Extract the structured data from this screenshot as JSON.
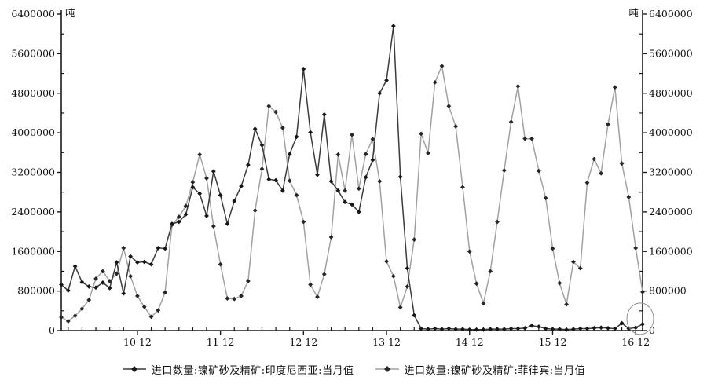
{
  "chart": {
    "unit_left": "吨",
    "unit_right": "吨",
    "background": "#ffffff",
    "axis_color": "#1a1a1a",
    "tick_label_color": "#111111",
    "tick_font_size": 12.5
  },
  "annotation": {
    "type": "ellipse",
    "description": "hand-drawn circle highlighting the final Indonesia data point near zero",
    "series_index": 0,
    "point_index": 84,
    "rx": 17,
    "ry": 20,
    "color": "#8f8f8f"
  },
  "chart_data": {
    "type": "line",
    "title": "",
    "xlabel": "",
    "ylabel": "吨",
    "grid": false,
    "legend_position": "bottom-center",
    "x_start": "2010-01",
    "x_end": "2017-01",
    "x_frequency": "monthly",
    "n_points": 85,
    "y_axis": {
      "min": 0,
      "max": 6400000,
      "major_step": 800000,
      "minor_step": 400000
    },
    "x_axis": {
      "minor_tick_every_months": 2,
      "ticks": [
        {
          "index": 11,
          "label": "10 12"
        },
        {
          "index": 23,
          "label": "11 12"
        },
        {
          "index": 35,
          "label": "12 12"
        },
        {
          "index": 47,
          "label": "13 12"
        },
        {
          "index": 59,
          "label": "14 12"
        },
        {
          "index": 71,
          "label": "15 12"
        },
        {
          "index": 83,
          "label": "16 12"
        }
      ]
    },
    "series": [
      {
        "name": "进口数量:镍矿砂及精矿:印度尼西亚:当月值",
        "line_color": "#3c3c3c",
        "marker_color": "#161616",
        "values": [
          930000,
          810000,
          1300000,
          980000,
          890000,
          870000,
          970000,
          860000,
          1380000,
          750000,
          1500000,
          1380000,
          1390000,
          1340000,
          1670000,
          1660000,
          2160000,
          2200000,
          2350000,
          2900000,
          2770000,
          2320000,
          3220000,
          2740000,
          2160000,
          2620000,
          2920000,
          3350000,
          4080000,
          3750000,
          3060000,
          3040000,
          2830000,
          3570000,
          3920000,
          5290000,
          4010000,
          3150000,
          4370000,
          3020000,
          2830000,
          2600000,
          2550000,
          2400000,
          3100000,
          3450000,
          4800000,
          5060000,
          6160000,
          3110000,
          1260000,
          310000,
          40000,
          30000,
          40000,
          30000,
          40000,
          30000,
          30000,
          20000,
          20000,
          20000,
          30000,
          30000,
          30000,
          40000,
          40000,
          50000,
          100000,
          80000,
          40000,
          30000,
          30000,
          20000,
          30000,
          40000,
          40000,
          50000,
          60000,
          50000,
          40000,
          150000,
          40000,
          60000,
          130000
        ]
      },
      {
        "name": "进口数量:镍矿砂及精矿:菲律宾:当月值",
        "line_color": "#a2a2a2",
        "marker_color": "#262626",
        "values": [
          270000,
          190000,
          300000,
          440000,
          620000,
          1050000,
          1200000,
          1000000,
          1150000,
          1670000,
          1100000,
          700000,
          480000,
          280000,
          410000,
          770000,
          2140000,
          2300000,
          2520000,
          3000000,
          3560000,
          3080000,
          2110000,
          1340000,
          650000,
          640000,
          700000,
          1000000,
          2430000,
          3270000,
          4540000,
          4420000,
          4100000,
          3030000,
          2740000,
          2200000,
          930000,
          680000,
          1140000,
          1890000,
          3560000,
          2830000,
          3960000,
          2870000,
          3570000,
          3870000,
          3020000,
          1400000,
          1100000,
          470000,
          890000,
          1840000,
          3980000,
          3590000,
          5020000,
          5350000,
          4540000,
          4130000,
          2900000,
          1600000,
          950000,
          550000,
          1200000,
          2200000,
          3240000,
          4220000,
          4940000,
          3880000,
          3880000,
          3230000,
          2680000,
          1660000,
          960000,
          530000,
          1390000,
          1260000,
          2990000,
          3470000,
          3180000,
          4170000,
          4920000,
          3380000,
          2700000,
          1670000,
          780000
        ]
      }
    ]
  }
}
